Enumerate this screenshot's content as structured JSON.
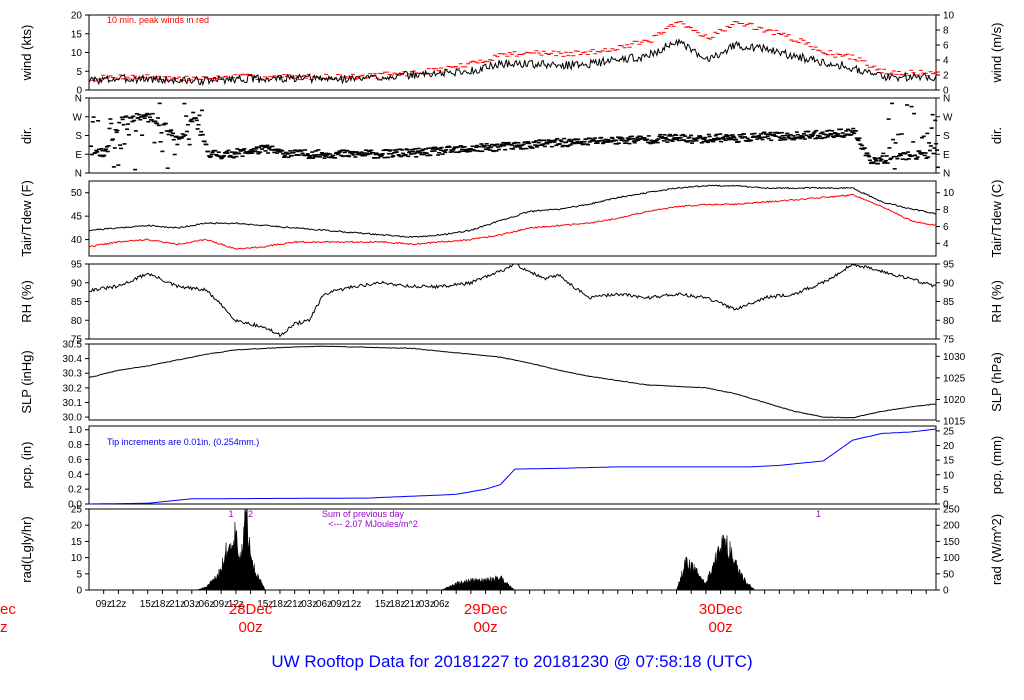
{
  "title": "UW Rooftop Data for 20181227  to  20181230 @ 07:58:18  (UTC)",
  "colors": {
    "primary": "#000000",
    "peak": "#ff0000",
    "dewpoint": "#ff0000",
    "precip": "#0000ff",
    "note_blue": "#0000ff",
    "note_purple": "#9900cc",
    "title": "#0000ff",
    "date_label": "#ff0000"
  },
  "x_axis": {
    "ticks": [
      "09z",
      "12z",
      "15z",
      "18z",
      "21z",
      "03z",
      "06z",
      "09z",
      "12z",
      "15z",
      "18z",
      "21z",
      "03z",
      "06z",
      "09z",
      "12z",
      "15z",
      "18z",
      "21z",
      "03z",
      "06z"
    ],
    "date_labels": [
      {
        "date": "28Dec",
        "time": "00z"
      },
      {
        "date": "29Dec",
        "time": "00z"
      },
      {
        "date": "30Dec",
        "time": "00z"
      }
    ],
    "partial_left_label": {
      "date": "ec",
      "time": "z"
    }
  },
  "chart_data": [
    {
      "type": "line",
      "id": "wind",
      "ylabel_left": "wind (kts)",
      "ylabel_right": "wind (m/s)",
      "ylim_left": [
        0,
        20
      ],
      "ylim_right": [
        0,
        10
      ],
      "yticks_left": [
        "0",
        "5",
        "10",
        "15",
        "20"
      ],
      "yticks_right": [
        "0",
        "2",
        "4",
        "6",
        "8",
        "10"
      ],
      "annotation": "10 min. peak winds in red",
      "series": [
        {
          "color": "black",
          "x": [
            -9,
            -3,
            3,
            9,
            15,
            21,
            27,
            33,
            39,
            45,
            51,
            57,
            63,
            69,
            75,
            81,
            87,
            93,
            99,
            105,
            111,
            117,
            123,
            129,
            135,
            141,
            147,
            153,
            159,
            164
          ],
          "values": [
            2.5,
            3,
            3,
            2.5,
            2.5,
            3,
            3,
            3,
            3,
            3,
            3.5,
            4,
            4.5,
            5,
            7,
            7,
            6.5,
            7,
            8,
            9,
            13,
            8,
            12,
            11,
            9,
            7.5,
            6,
            3.5,
            3.5,
            3.5
          ]
        },
        {
          "color": "red",
          "x": [
            -9,
            -3,
            3,
            9,
            15,
            21,
            27,
            33,
            39,
            45,
            51,
            57,
            63,
            69,
            75,
            81,
            87,
            93,
            99,
            105,
            111,
            117,
            123,
            129,
            135,
            141,
            147,
            153,
            159,
            164
          ],
          "values": [
            3,
            3.5,
            3.5,
            3,
            3,
            3.5,
            3.5,
            3.5,
            3.5,
            3.5,
            4,
            4.5,
            5.5,
            7,
            9.5,
            10,
            9.5,
            10,
            11.5,
            13,
            18,
            14,
            18,
            16,
            13.5,
            10,
            8.5,
            5,
            4.5,
            4.5
          ]
        }
      ]
    },
    {
      "type": "scatter",
      "id": "dir",
      "ylabel_left": "dir.",
      "ylabel_right": "dir.",
      "yticks": [
        "N",
        "E",
        "S",
        "W",
        "N"
      ],
      "series": [
        {
          "color": "black",
          "x": [
            -9,
            -6,
            -3,
            0,
            3,
            6,
            9,
            12,
            15,
            18,
            21,
            24,
            27,
            30,
            33,
            36,
            39,
            42,
            45,
            48,
            51,
            54,
            57,
            60,
            63,
            66,
            69,
            72,
            75,
            78,
            81,
            84,
            87,
            90,
            93,
            96,
            99,
            102,
            105,
            108,
            111,
            114,
            117,
            120,
            123,
            126,
            129,
            132,
            135,
            138,
            141,
            144,
            147,
            150,
            153,
            156,
            159,
            162,
            164
          ],
          "values": [
            110,
            100,
            250,
            270,
            280,
            230,
            150,
            280,
            100,
            90,
            100,
            110,
            120,
            100,
            95,
            95,
            95,
            95,
            95,
            95,
            95,
            100,
            100,
            105,
            110,
            115,
            120,
            125,
            130,
            135,
            140,
            145,
            150,
            150,
            155,
            160,
            160,
            165,
            165,
            170,
            170,
            165,
            170,
            175,
            170,
            175,
            180,
            180,
            180,
            185,
            190,
            195,
            200,
            60,
            70,
            80,
            90,
            95,
            100
          ]
        }
      ]
    },
    {
      "type": "line",
      "id": "temperature",
      "ylabel_left": "Tair/Tdew (F)",
      "ylabel_right": "Tair/Tdew (C)",
      "ylim_left": [
        36.5,
        52.5
      ],
      "yticks_left": [
        "40",
        "45",
        "50"
      ],
      "yticks_right": [
        "4",
        "6",
        "8",
        "10"
      ],
      "series": [
        {
          "color": "black",
          "x": [
            -9,
            -3,
            3,
            9,
            15,
            21,
            27,
            33,
            39,
            45,
            51,
            57,
            63,
            69,
            75,
            81,
            87,
            93,
            99,
            105,
            111,
            117,
            123,
            129,
            135,
            141,
            147,
            153,
            159,
            164
          ],
          "values": [
            42,
            42.5,
            43,
            42.5,
            43.5,
            43.5,
            43,
            42.5,
            42,
            41.5,
            41,
            40.5,
            41,
            42,
            44,
            46,
            46.5,
            47.5,
            49,
            50,
            51,
            51.5,
            51.5,
            51,
            51,
            51,
            51,
            48,
            46.5,
            45.5
          ]
        },
        {
          "color": "red",
          "x": [
            -9,
            -3,
            3,
            9,
            15,
            21,
            27,
            33,
            39,
            45,
            51,
            57,
            63,
            69,
            75,
            81,
            87,
            93,
            99,
            105,
            111,
            117,
            123,
            129,
            135,
            141,
            147,
            153,
            159,
            164
          ],
          "values": [
            38.5,
            39.5,
            40,
            39,
            40,
            38,
            38.5,
            39.5,
            39.5,
            39.5,
            39.5,
            39,
            39.5,
            40,
            41,
            42.5,
            43,
            43.5,
            44.5,
            46,
            47,
            47.5,
            47.5,
            48,
            48.5,
            49,
            49.5,
            47,
            44,
            43
          ]
        }
      ]
    },
    {
      "type": "line",
      "id": "rh",
      "ylabel_left": "RH (%)",
      "ylabel_right": "RH (%)",
      "ylim_left": [
        75,
        95
      ],
      "yticks_left": [
        "75",
        "80",
        "85",
        "90",
        "95"
      ],
      "yticks_right": [
        "75",
        "80",
        "85",
        "90",
        "95"
      ],
      "series": [
        {
          "color": "black",
          "x": [
            -9,
            -3,
            3,
            9,
            15,
            21,
            27,
            30,
            33,
            36,
            39,
            45,
            51,
            57,
            63,
            69,
            75,
            78,
            81,
            84,
            87,
            93,
            99,
            105,
            111,
            117,
            123,
            129,
            135,
            141,
            147,
            153,
            159,
            164
          ],
          "values": [
            88,
            89,
            92.5,
            89,
            88,
            80,
            78,
            76,
            79,
            80,
            87,
            89,
            90,
            89,
            89,
            90,
            93,
            95,
            93,
            91,
            92,
            86,
            87,
            86,
            87,
            86,
            83,
            86,
            87,
            90,
            95,
            93,
            91,
            89
          ]
        }
      ]
    },
    {
      "type": "line",
      "id": "slp",
      "ylabel_left": "SLP (inHg)",
      "ylabel_right": "SLP (hPa)",
      "ylim_left": [
        29.98,
        30.5
      ],
      "yticks_left": [
        "30.0",
        "30.1",
        "30.2",
        "30.3",
        "30.4",
        "30.5"
      ],
      "yticks_right": [
        "1015",
        "1020",
        "1025",
        "1030"
      ],
      "series": [
        {
          "color": "black",
          "x": [
            -9,
            -3,
            3,
            9,
            15,
            21,
            27,
            33,
            39,
            45,
            51,
            57,
            63,
            69,
            75,
            81,
            87,
            93,
            99,
            105,
            111,
            117,
            123,
            129,
            135,
            141,
            147,
            153,
            159,
            164
          ],
          "values": [
            30.27,
            30.32,
            30.35,
            30.39,
            30.43,
            30.46,
            30.47,
            30.48,
            30.485,
            30.48,
            30.475,
            30.47,
            30.45,
            30.43,
            30.41,
            30.37,
            30.32,
            30.28,
            30.25,
            30.22,
            30.21,
            30.2,
            30.16,
            30.1,
            30.04,
            30,
            29.995,
            30.04,
            30.07,
            30.09
          ]
        }
      ]
    },
    {
      "type": "area",
      "id": "precip",
      "ylabel_left": "pcp. (in)",
      "ylabel_right": "pcp. (mm)",
      "ylim_left": [
        0,
        1.05
      ],
      "yticks_left": [
        "0.0",
        "0.2",
        "0.4",
        "0.6",
        "0.8",
        "1.0"
      ],
      "yticks_right": [
        "0",
        "5",
        "10",
        "15",
        "20",
        "25"
      ],
      "annotation": "Tip increments are 0.01in. (0.254mm.)",
      "series": [
        {
          "color": "blue",
          "x": [
            -9,
            3,
            12,
            48,
            66,
            72,
            75,
            78,
            87,
            99,
            111,
            120,
            126,
            132,
            141,
            147,
            153,
            159,
            164
          ],
          "values": [
            0,
            0.01,
            0.07,
            0.08,
            0.13,
            0.2,
            0.26,
            0.47,
            0.48,
            0.5,
            0.5,
            0.5,
            0.5,
            0.52,
            0.58,
            0.86,
            0.95,
            0.97,
            1.01
          ]
        }
      ]
    },
    {
      "type": "area",
      "id": "radiation",
      "ylabel_left": "rad(Lgly/hr)",
      "ylabel_right": "rad (W/m^2)",
      "ylim_left": [
        0,
        25
      ],
      "yticks_left": [
        "0",
        "5",
        "10",
        "15",
        "20",
        "25"
      ],
      "yticks_right": [
        "0",
        "50",
        "100",
        "150",
        "200",
        "250"
      ],
      "annotation": "Sum of previous day",
      "annotation2": "<--- 2.07 MJoules/m^2",
      "peak_labels": [
        {
          "x": 20,
          "label": "1"
        },
        {
          "x": 24,
          "label": "2"
        },
        {
          "x": 140,
          "label": "1"
        }
      ],
      "series": [
        {
          "color": "black",
          "x": [
            13,
            15,
            17,
            18,
            19,
            20,
            21,
            22,
            23,
            24,
            25,
            26,
            27,
            63,
            66,
            69,
            72,
            75,
            78,
            111,
            113,
            115,
            117,
            119,
            121,
            123,
            125,
            127
          ],
          "values": [
            0,
            1,
            4,
            7,
            12,
            14,
            19,
            8,
            24,
            14,
            5,
            3,
            0,
            0,
            2,
            3,
            3,
            4,
            0,
            0,
            9,
            6,
            2,
            10,
            16,
            8,
            3,
            0
          ]
        }
      ]
    }
  ]
}
